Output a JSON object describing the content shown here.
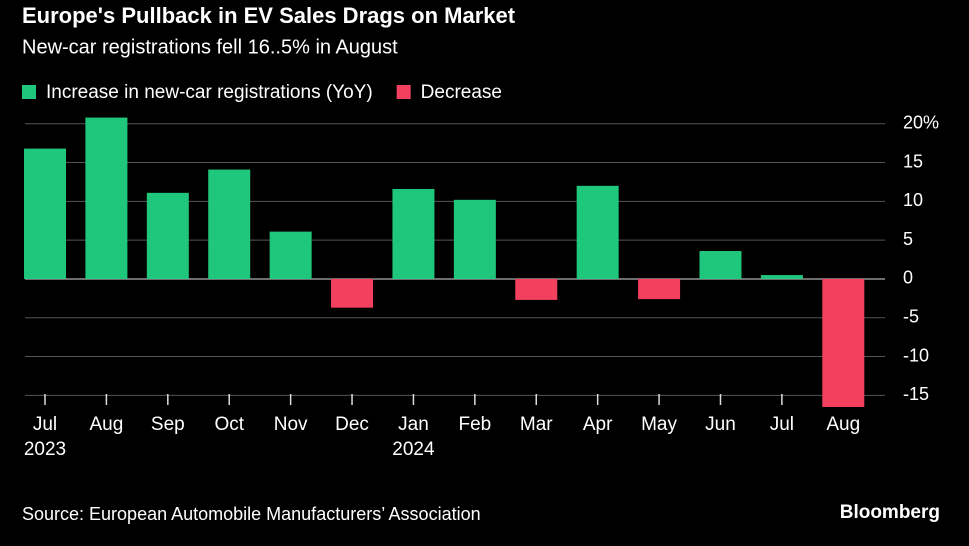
{
  "chart_data": {
    "type": "bar",
    "title": "Europe's Pullback in EV Sales Drags on Market",
    "subtitle": "New-car registrations fell 16..5% in August",
    "source": "Source: European Automobile Manufacturers’ Association",
    "brand": "Bloomberg",
    "categories": [
      "Jul\n2023",
      "Aug",
      "Sep",
      "Oct",
      "Nov",
      "Dec",
      "Jan\n2024",
      "Feb",
      "Mar",
      "Apr",
      "May",
      "Jun",
      "Jul",
      "Aug"
    ],
    "series": [
      {
        "name": "Increase in new-car registrations (YoY)",
        "color": "#1fc77d",
        "values": [
          16.8,
          20.8,
          11.1,
          14.1,
          6.1,
          null,
          11.6,
          10.2,
          null,
          12.0,
          null,
          3.6,
          0.5,
          null
        ]
      },
      {
        "name": "Decrease",
        "color": "#f4405f",
        "values": [
          null,
          null,
          null,
          null,
          null,
          -3.7,
          null,
          null,
          -2.7,
          null,
          -2.6,
          null,
          null,
          -16.5
        ]
      }
    ],
    "ylim": [
      -16.5,
      21
    ],
    "yticks": [
      {
        "value": 20,
        "label": "20%"
      },
      15,
      10,
      5,
      0,
      -5,
      -10,
      -15
    ],
    "grid": true
  }
}
